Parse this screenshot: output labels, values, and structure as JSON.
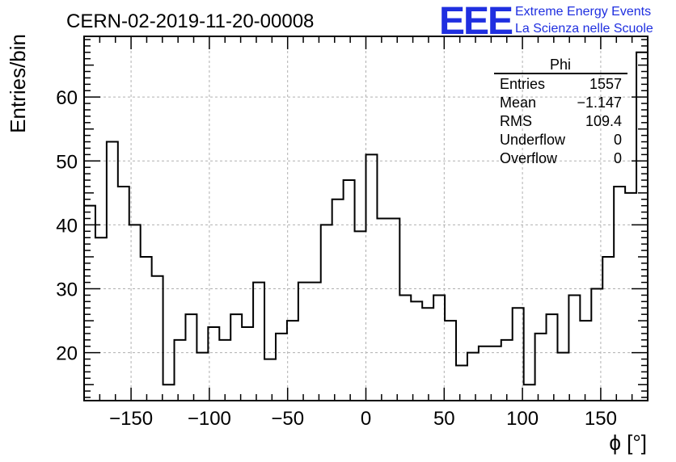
{
  "chart_data": {
    "type": "bar",
    "title": "CERN-02-2019-11-20-00008",
    "xlabel": "ϕ [°]",
    "ylabel": "Entries/bin",
    "xlim": [
      -180,
      180
    ],
    "ylim": [
      12.5,
      69.5
    ],
    "bin_edges_start": -180,
    "bin_width": 7.2,
    "values": [
      43,
      38,
      53,
      46,
      40,
      35,
      32,
      15,
      22,
      26,
      20,
      24,
      22,
      26,
      24,
      31,
      19,
      23,
      25,
      31,
      31,
      40,
      44,
      47,
      39,
      51,
      41,
      41,
      29,
      28,
      27,
      29,
      25,
      18,
      20,
      21,
      21,
      22,
      27,
      15,
      23,
      26,
      20,
      29,
      25,
      30,
      35,
      46,
      45,
      67
    ],
    "x_ticks": [
      -150,
      -100,
      -50,
      0,
      50,
      100,
      150
    ],
    "x_tick_labels": [
      "−150",
      "−100",
      "−50",
      "0",
      "50",
      "100",
      "150"
    ],
    "y_ticks": [
      20,
      30,
      40,
      50,
      60
    ],
    "y_tick_labels": [
      "20",
      "30",
      "40",
      "50",
      "60"
    ],
    "grid": true,
    "legend_placement": "top-right"
  },
  "stats": {
    "name": "Phi",
    "rows": [
      {
        "label": "Entries",
        "value": "1557"
      },
      {
        "label": "Mean",
        "value": "−1.147"
      },
      {
        "label": "RMS",
        "value": "109.4"
      },
      {
        "label": "Underflow",
        "value": "0"
      },
      {
        "label": "Overflow",
        "value": "0"
      }
    ]
  },
  "logo": {
    "mark": "EEE",
    "line1": "Extreme Energy Events",
    "line2": "La Scienza nelle Scuole",
    "color": "#1f2fe0"
  }
}
